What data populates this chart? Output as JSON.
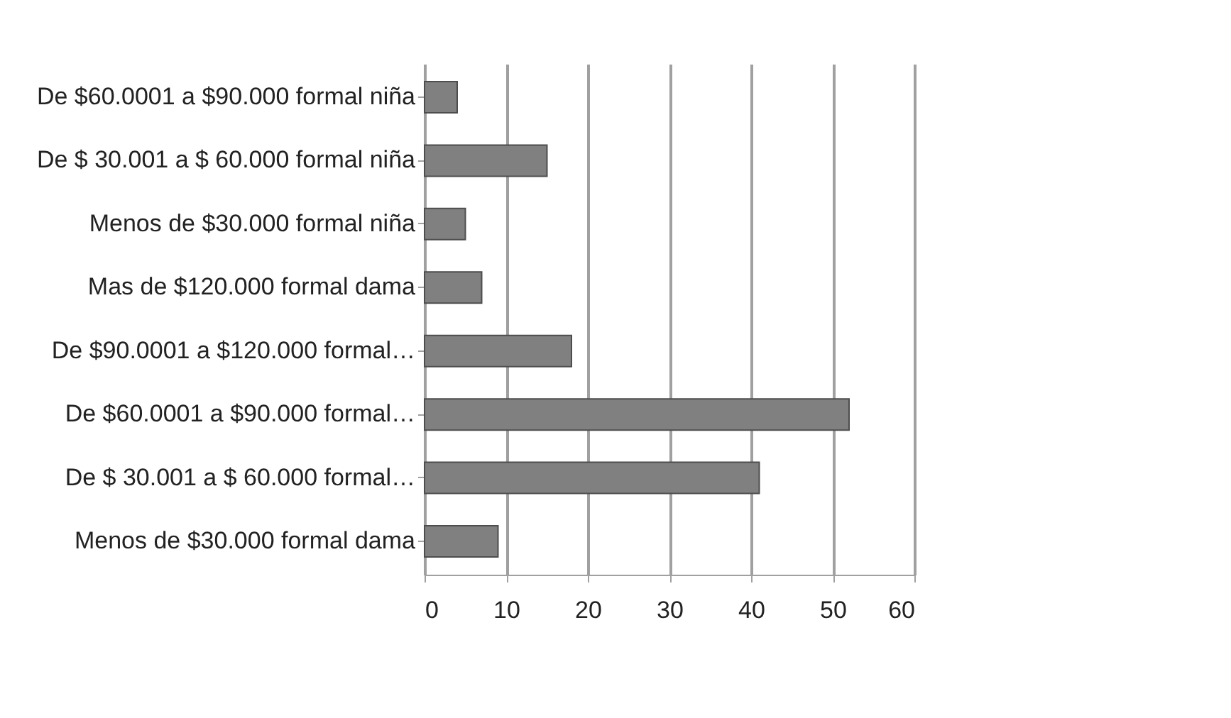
{
  "chart_data": {
    "type": "bar",
    "orientation": "horizontal",
    "categories": [
      "De $60.0001 a $90.000  formal niña",
      "De $ 30.001 a $ 60.000  formal niña",
      "Menos de $30.000 formal niña",
      "Mas de $120.000  formal dama",
      "De $90.0001 a $120.000  formal…",
      "De $60.0001 a $90.000  formal…",
      "De $ 30.001 a $ 60.000  formal…",
      "Menos de $30.000 formal dama"
    ],
    "values": [
      4,
      15,
      5,
      7,
      18,
      52,
      41,
      9
    ],
    "color": "#808080",
    "xlim": [
      0,
      60
    ],
    "xticks": [
      0,
      10,
      20,
      30,
      40,
      50,
      60
    ],
    "grid": "x"
  }
}
